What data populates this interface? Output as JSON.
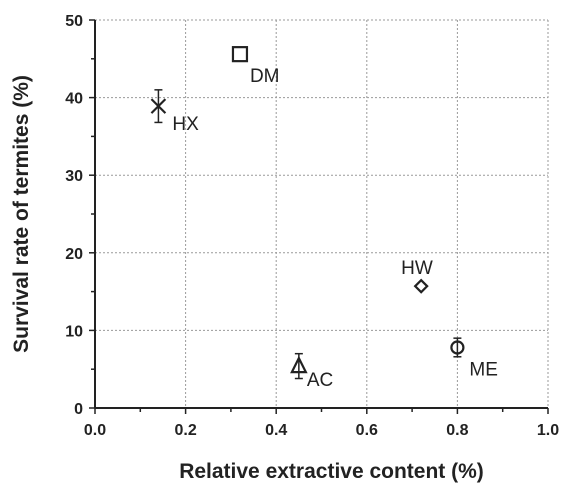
{
  "chart_data": {
    "type": "scatter",
    "title": "",
    "xlabel": "Relative extractive content (%)",
    "ylabel": "Survival rate of termites (%)",
    "xlim": [
      0.0,
      1.0
    ],
    "ylim": [
      0,
      50
    ],
    "xticks": [
      "0.0",
      "0.2",
      "0.4",
      "0.6",
      "0.8",
      "1.0"
    ],
    "yticks": [
      "0",
      "10",
      "20",
      "30",
      "40",
      "50"
    ],
    "grid": true,
    "points": [
      {
        "label": "DM",
        "x": 0.32,
        "y": 45.6,
        "err": 0,
        "marker": "square"
      },
      {
        "label": "HX",
        "x": 0.14,
        "y": 38.9,
        "err": 2.1,
        "marker": "x"
      },
      {
        "label": "HW",
        "x": 0.72,
        "y": 15.7,
        "err": 0,
        "marker": "diamond"
      },
      {
        "label": "AC",
        "x": 0.45,
        "y": 5.4,
        "err": 1.6,
        "marker": "triangle"
      },
      {
        "label": "ME",
        "x": 0.8,
        "y": 7.8,
        "err": 1.2,
        "marker": "circle"
      }
    ]
  }
}
